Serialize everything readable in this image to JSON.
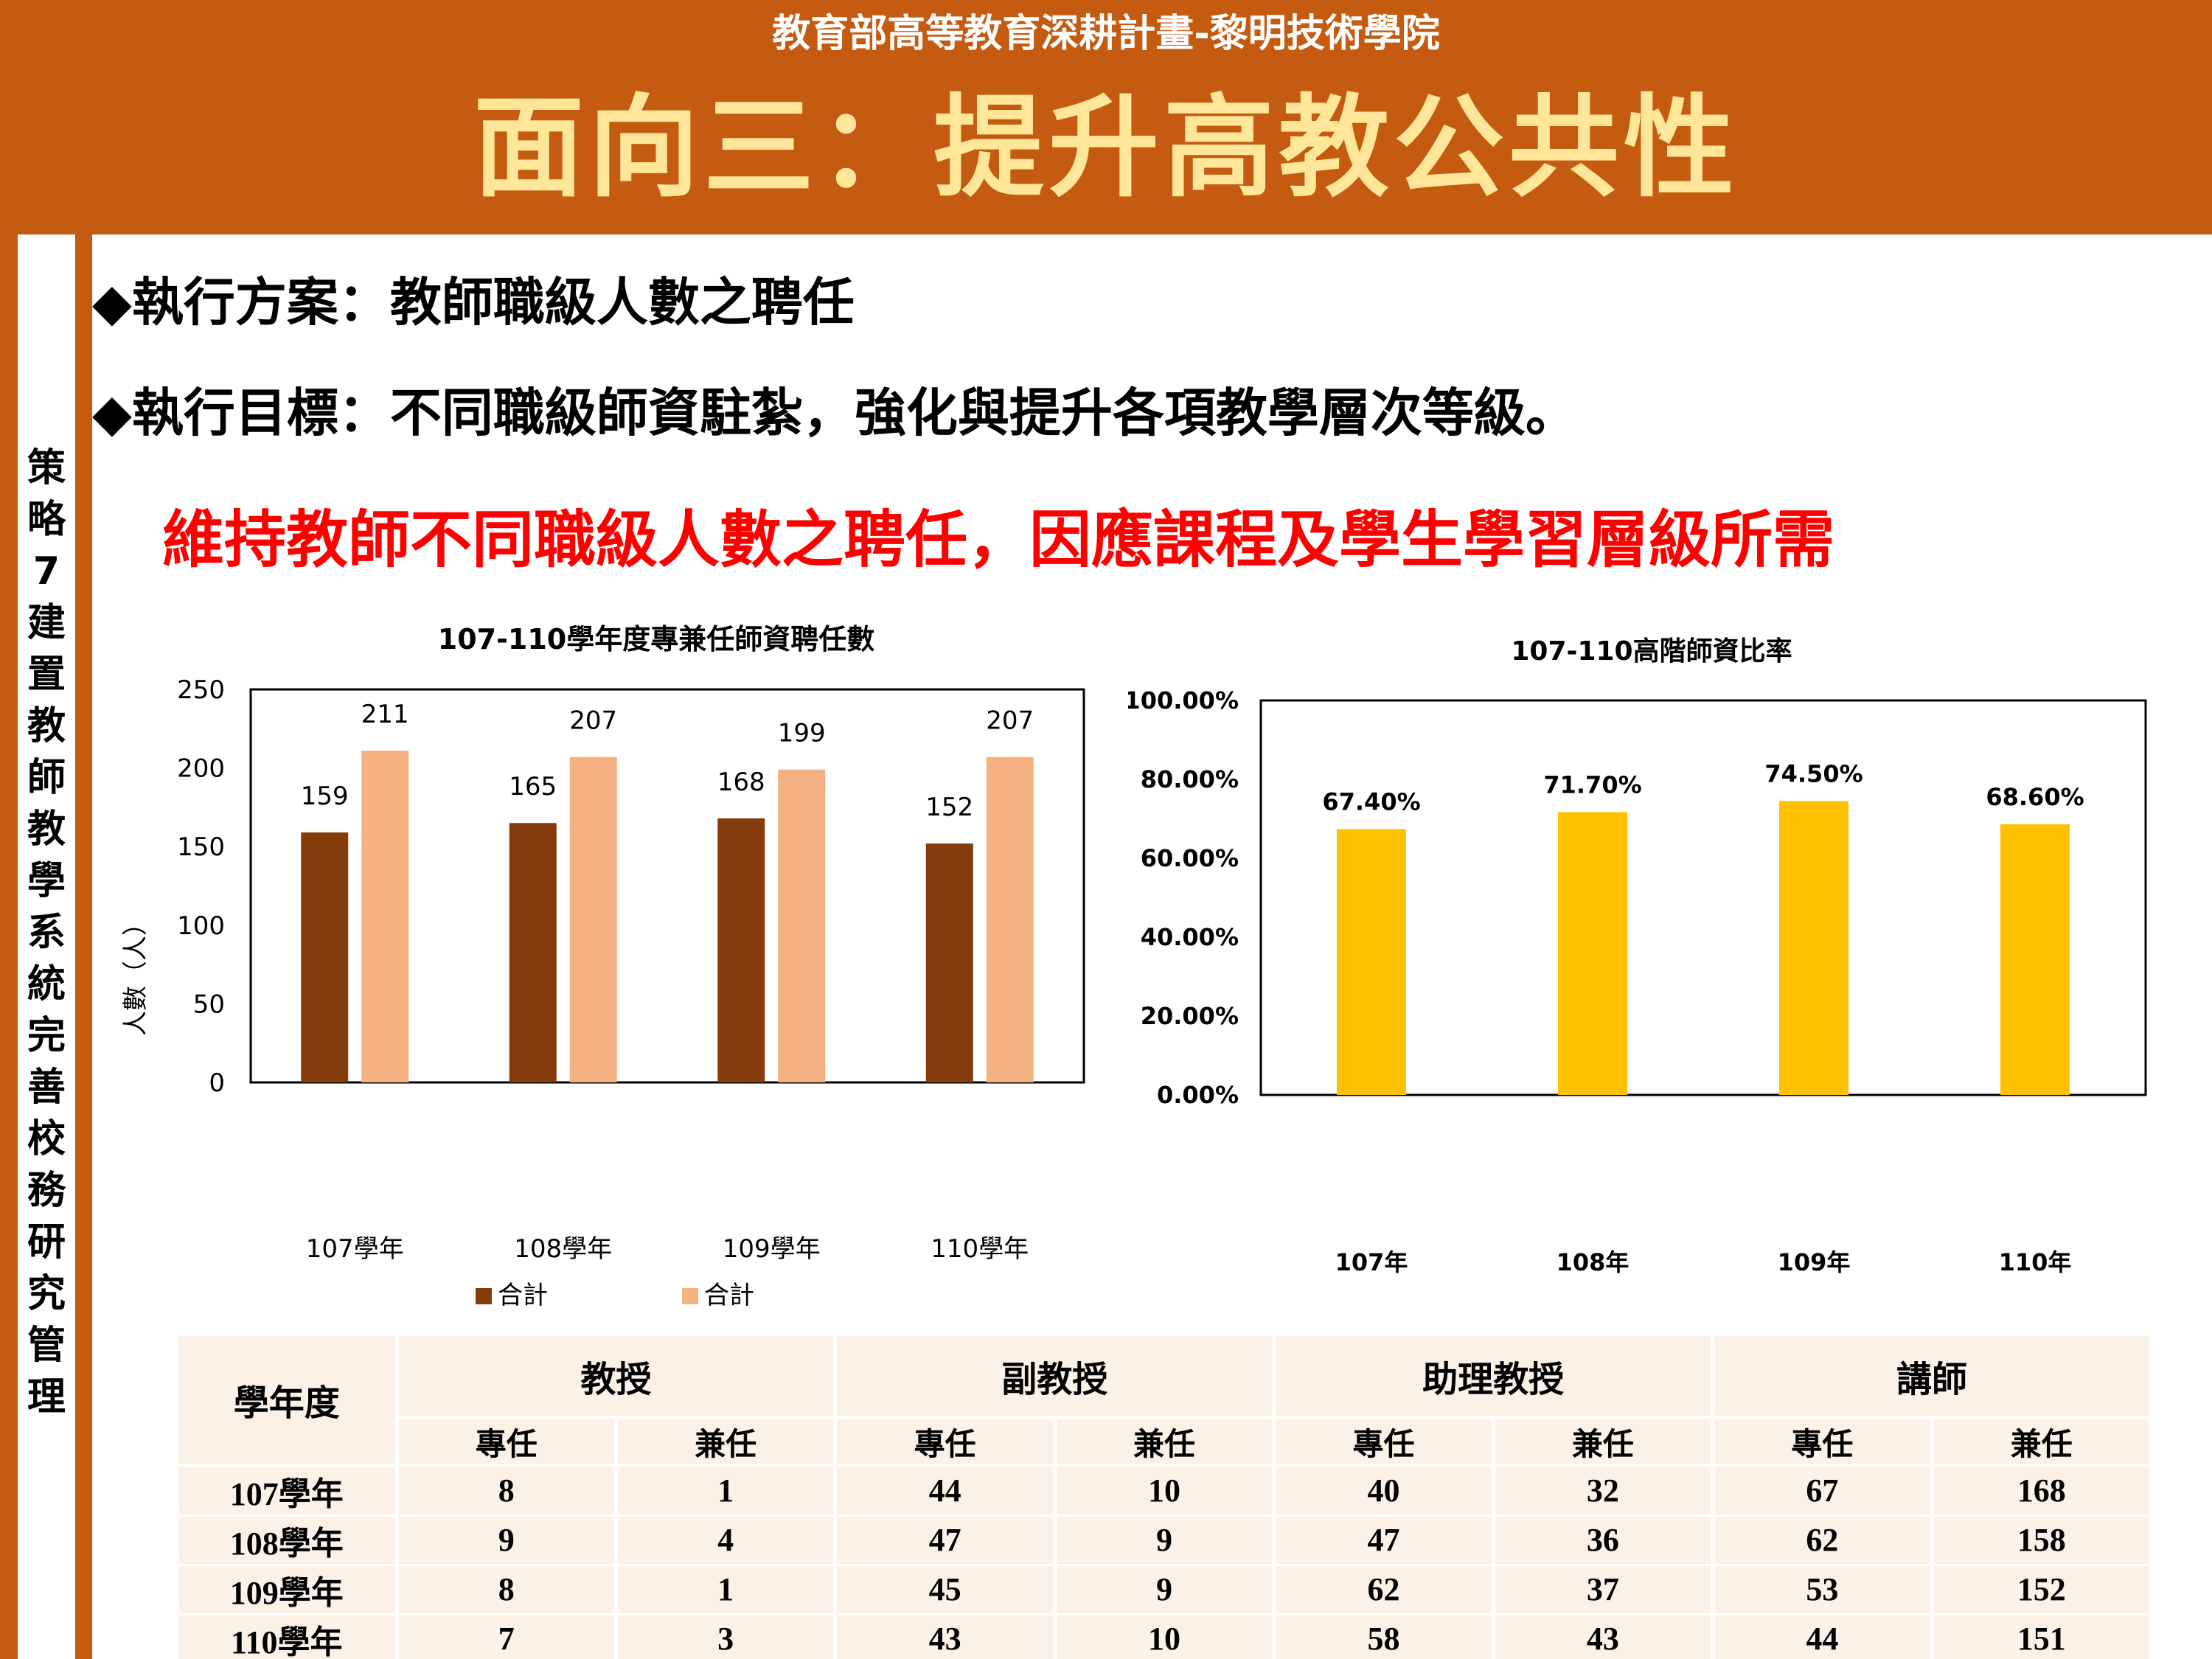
{
  "header": {
    "subtitle": "教育部高等教育深耕計畫-黎明技術學院",
    "title": "面向三：提升高教公共性"
  },
  "sidebar": {
    "chars": [
      "策",
      "略",
      "7",
      "建",
      "置",
      "教",
      "師",
      "教",
      "學",
      "系",
      "統",
      "完",
      "善",
      "校",
      "務",
      "研",
      "究",
      "管",
      "理"
    ]
  },
  "bullets": {
    "plan": "◆執行方案：教師職級人數之聘任",
    "goal": "◆執行目標：不同職級師資駐紮，強化與提升各項教學層次等級。"
  },
  "highlight": "維持教師不同職級人數之聘任，因應課程及學生學習層級所需",
  "chart_data": [
    {
      "type": "bar",
      "title": "107-110學年度專兼任師資聘任數",
      "ylabel": "人數（人）",
      "xlabel": "",
      "categories": [
        "107學年",
        "108學年",
        "109學年",
        "110學年"
      ],
      "series": [
        {
          "name": "合計",
          "color": "#843c0c",
          "values": [
            159,
            165,
            168,
            152
          ]
        },
        {
          "name": "合計",
          "color": "#f4b183",
          "values": [
            211,
            207,
            199,
            207
          ]
        }
      ],
      "ylim": [
        0,
        250
      ],
      "yticks": [
        "0",
        "50",
        "100",
        "150",
        "200",
        "250"
      ],
      "legend": "bottom",
      "grid": false
    },
    {
      "type": "bar",
      "title": "107-110高階師資比率",
      "categories": [
        "107年",
        "108年",
        "109年",
        "110年"
      ],
      "series": [
        {
          "color": "#ffc000",
          "values": [
            67.4,
            71.7,
            74.5,
            68.6
          ]
        }
      ],
      "value_labels": [
        "67.40%",
        "71.70%",
        "74.50%",
        "68.60%"
      ],
      "ylim": [
        0,
        100
      ],
      "yticks": [
        "0.00%",
        "20.00%",
        "40.00%",
        "60.00%",
        "80.00%",
        "100.00%"
      ],
      "legend": "none",
      "grid": false
    }
  ],
  "table": {
    "year_header": "學年度",
    "groups": [
      "教授",
      "副教授",
      "助理教授",
      "講師"
    ],
    "sub": [
      "專任",
      "兼任"
    ],
    "rows": [
      {
        "year": "107學年",
        "values": [
          "8",
          "1",
          "44",
          "10",
          "40",
          "32",
          "67",
          "168"
        ]
      },
      {
        "year": "108學年",
        "values": [
          "9",
          "4",
          "47",
          "9",
          "47",
          "36",
          "62",
          "158"
        ]
      },
      {
        "year": "109學年",
        "values": [
          "8",
          "1",
          "45",
          "9",
          "62",
          "37",
          "53",
          "152"
        ]
      },
      {
        "year": "110學年",
        "values": [
          "7",
          "3",
          "43",
          "10",
          "58",
          "43",
          "44",
          "151"
        ]
      }
    ]
  }
}
